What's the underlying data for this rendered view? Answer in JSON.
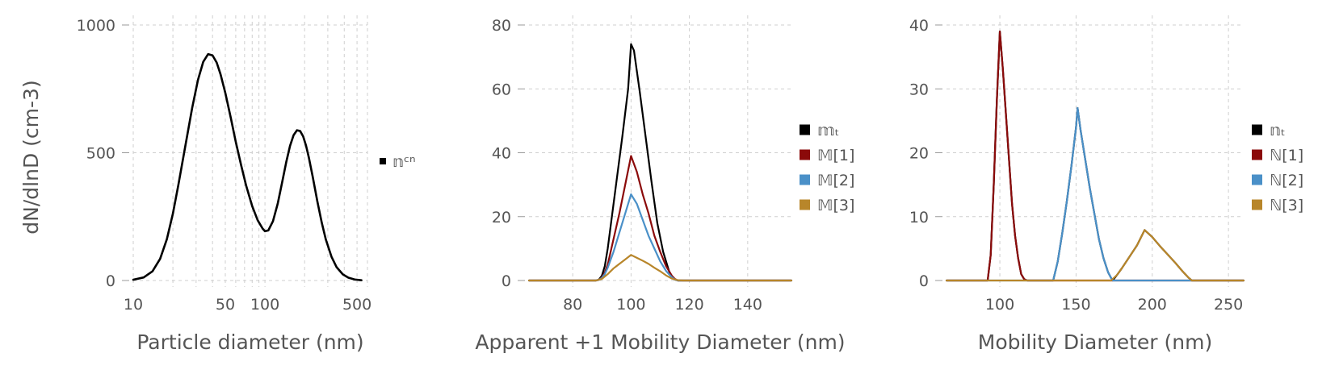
{
  "chart_data": [
    {
      "type": "line",
      "xscale": "log",
      "xlabel": "Particle diameter (nm)",
      "ylabel": "dN/dlnD (cm-3)",
      "xlim": [
        10,
        600
      ],
      "ylim": [
        0,
        1000
      ],
      "xticks": [
        10,
        50,
        100,
        500
      ],
      "xtick_labels": [
        "10",
        "50",
        "100",
        "500"
      ],
      "yticks": [
        0,
        500,
        1000
      ],
      "ytick_labels": [
        "0",
        "500",
        "1000"
      ],
      "grid": true,
      "legend": "right",
      "series": [
        {
          "name": "𝕟ᶜⁿ",
          "color": "#000000",
          "legend_marker": "small",
          "x": [
            10,
            12,
            14,
            16,
            18,
            20,
            22,
            25,
            28,
            31,
            34,
            37,
            40,
            43,
            46,
            50,
            55,
            60,
            66,
            72,
            80,
            88,
            96,
            100,
            106,
            115,
            125,
            135,
            145,
            155,
            165,
            175,
            185,
            195,
            205,
            215,
            230,
            250,
            270,
            290,
            320,
            350,
            390,
            430,
            480,
            540
          ],
          "y": [
            3,
            12,
            36,
            85,
            162,
            262,
            374,
            534,
            675,
            785,
            856,
            886,
            881,
            853,
            807,
            734,
            637,
            543,
            450,
            371,
            291,
            236,
            203,
            193,
            196,
            232,
            301,
            384,
            463,
            527,
            569,
            588,
            585,
            564,
            528,
            483,
            408,
            309,
            226,
            160,
            93,
            52,
            24,
            11,
            4,
            1
          ]
        }
      ]
    },
    {
      "type": "line",
      "xlabel": "Apparent +1 Mobility Diameter (nm)",
      "ylabel": "",
      "xlim": [
        65,
        155
      ],
      "ylim": [
        0,
        80
      ],
      "xticks": [
        80,
        100,
        120,
        140
      ],
      "xtick_labels": [
        "80",
        "100",
        "120",
        "140"
      ],
      "yticks": [
        0,
        20,
        40,
        60,
        80
      ],
      "ytick_labels": [
        "0",
        "20",
        "40",
        "60",
        "80"
      ],
      "grid": true,
      "legend": "right",
      "series": [
        {
          "name": "𝕞ₜ",
          "color": "#000000",
          "x": [
            65,
            88,
            89,
            90,
            91,
            92,
            93,
            95,
            97,
            99,
            100,
            101,
            103,
            105,
            107,
            109,
            111,
            113,
            114,
            115,
            116,
            118,
            155
          ],
          "y": [
            0,
            0,
            0.3,
            1.5,
            4.5,
            10,
            17,
            31,
            45,
            60,
            74,
            72,
            59,
            45,
            31,
            18,
            9,
            3,
            1,
            0.3,
            0,
            0,
            0
          ]
        },
        {
          "name": "𝕄[1]",
          "color": "#8b0a0a",
          "x": [
            65,
            88,
            89,
            90,
            91,
            92,
            94,
            96,
            98,
            100,
            102,
            104,
            106,
            108,
            110,
            112,
            114,
            115,
            116,
            118,
            155
          ],
          "y": [
            0,
            0,
            0.2,
            1,
            2.5,
            5,
            13,
            21,
            30,
            39,
            34,
            27,
            21,
            14,
            9,
            4.5,
            1.5,
            0.5,
            0,
            0,
            0
          ]
        },
        {
          "name": "𝕄[2]",
          "color": "#4a90c8",
          "x": [
            65,
            88,
            89,
            90,
            91,
            92,
            94,
            96,
            98,
            100,
            102,
            104,
            106,
            108,
            110,
            112,
            114,
            115,
            116,
            118,
            155
          ],
          "y": [
            0,
            0,
            0.2,
            0.8,
            2,
            4,
            9,
            15,
            21,
            27,
            24,
            19,
            14,
            10,
            6,
            3,
            1,
            0.3,
            0,
            0,
            0
          ]
        },
        {
          "name": "𝕄[3]",
          "color": "#b8862a",
          "x": [
            65,
            88,
            90,
            92,
            94,
            96,
            98,
            100,
            102,
            104,
            106,
            108,
            110,
            112,
            114,
            116,
            118,
            155
          ],
          "y": [
            0,
            0,
            0.5,
            2,
            3.8,
            5.2,
            6.6,
            8,
            7.1,
            6.2,
            5.2,
            4,
            2.9,
            1.6,
            0.6,
            0.1,
            0,
            0
          ]
        }
      ]
    },
    {
      "type": "line",
      "xlabel": "Mobility Diameter (nm)",
      "ylabel": "",
      "xlim": [
        65,
        260
      ],
      "ylim": [
        0,
        40
      ],
      "xticks": [
        100,
        150,
        200,
        250
      ],
      "xtick_labels": [
        "100",
        "150",
        "200",
        "250"
      ],
      "yticks": [
        0,
        10,
        20,
        30,
        40
      ],
      "ytick_labels": [
        "0",
        "10",
        "20",
        "30",
        "40"
      ],
      "grid": true,
      "legend": "right",
      "series": [
        {
          "name": "𝕟ₜ",
          "color": "#000000",
          "x": [
            65,
            92,
            94,
            96,
            98,
            100,
            102,
            104,
            106,
            108,
            110,
            112,
            114,
            116,
            118,
            135,
            138,
            141,
            144,
            147,
            150,
            151,
            153,
            156,
            159,
            162,
            165,
            168,
            171,
            173,
            174,
            177,
            180,
            185,
            190,
            195,
            200,
            205,
            210,
            215,
            220,
            224,
            226,
            230,
            260
          ],
          "y": [
            0,
            0,
            4,
            15,
            28,
            39,
            33,
            26,
            19,
            12,
            7,
            3.5,
            1,
            0.2,
            0,
            0,
            3,
            7.5,
            12.5,
            18,
            24,
            27,
            23.5,
            19,
            14.5,
            10.5,
            6.5,
            3.5,
            1.3,
            0.4,
            0,
            0.9,
            1.9,
            3.7,
            5.5,
            7.9,
            6.8,
            5.4,
            4.1,
            2.8,
            1.4,
            0.4,
            0,
            0,
            0
          ]
        },
        {
          "name": "ℕ[1]",
          "color": "#8b0a0a",
          "x": [
            65,
            92,
            94,
            96,
            98,
            100,
            102,
            104,
            106,
            108,
            110,
            112,
            114,
            116,
            118,
            260
          ],
          "y": [
            0,
            0,
            4,
            15,
            28,
            39,
            33,
            26,
            19,
            12,
            7,
            3.5,
            1,
            0.2,
            0,
            0
          ]
        },
        {
          "name": "ℕ[2]",
          "color": "#4a90c8",
          "x": [
            65,
            135,
            138,
            141,
            144,
            147,
            150,
            151,
            153,
            156,
            159,
            162,
            165,
            168,
            171,
            173,
            174,
            260
          ],
          "y": [
            0,
            0,
            3,
            7.5,
            12.5,
            18,
            24,
            27,
            23.5,
            19,
            14.5,
            10.5,
            6.5,
            3.5,
            1.3,
            0.4,
            0,
            0
          ]
        },
        {
          "name": "ℕ[3]",
          "color": "#b8862a",
          "x": [
            65,
            173,
            177,
            180,
            185,
            190,
            195,
            200,
            205,
            210,
            215,
            220,
            224,
            226,
            260
          ],
          "y": [
            0,
            0,
            0.9,
            1.9,
            3.7,
            5.5,
            7.9,
            6.8,
            5.4,
            4.1,
            2.8,
            1.4,
            0.4,
            0,
            0
          ]
        }
      ]
    }
  ]
}
